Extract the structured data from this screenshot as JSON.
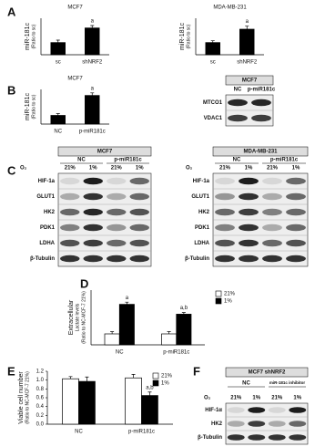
{
  "panel_labels": [
    "A",
    "B",
    "C",
    "D",
    "E",
    "F"
  ],
  "chart_data": [
    {
      "type": "bar",
      "title": "MCF7",
      "y_label": [
        "miR-181c",
        "(Ratio to sc)"
      ],
      "categories": [
        "sc",
        "shNRF2"
      ],
      "values": [
        1,
        2.2
      ],
      "errors": [
        0.2,
        0.2
      ],
      "annotations": [
        null,
        "a"
      ],
      "color": "#000000",
      "ylim": [
        0,
        3
      ]
    },
    {
      "type": "bar",
      "title": "MDA-MB-231",
      "y_label": [
        "miR-181c",
        "(Ratio to sc)"
      ],
      "categories": [
        "sc",
        "shNRF2"
      ],
      "values": [
        1,
        2.1
      ],
      "errors": [
        0.15,
        0.25
      ],
      "annotations": [
        null,
        "a"
      ],
      "color": "#000000",
      "ylim": [
        0,
        3
      ]
    },
    {
      "type": "bar",
      "title": "MCF7",
      "y_label": [
        "miR-181c",
        "(Ratio to sc)"
      ],
      "categories": [
        "NC",
        "p-miR181c"
      ],
      "values": [
        1,
        3.3
      ],
      "errors": [
        0.2,
        0.3
      ],
      "annotations": [
        null,
        "a"
      ],
      "color": "#000000",
      "ylim": [
        0,
        4
      ]
    },
    {
      "type": "bar",
      "y_label": [
        "Extracellular",
        "Lactate levels",
        "(Ratio to NC-MCF-7 21%)"
      ],
      "categories": [
        "NC",
        "p-miR181c"
      ],
      "ylim": [
        0,
        5
      ],
      "legend": "upper right",
      "series": [
        {
          "name": "21%",
          "color": "#ffffff",
          "values": [
            1,
            1
          ],
          "errors": [
            0.2,
            0.2
          ],
          "annotations": [
            null,
            null
          ]
        },
        {
          "name": "1%",
          "color": "#000000",
          "values": [
            3.7,
            2.8
          ],
          "errors": [
            0.2,
            0.15
          ],
          "annotations": [
            "a",
            "a,b"
          ]
        }
      ]
    },
    {
      "type": "bar",
      "y_label": [
        "Viable cell number",
        "(Ratio to NC-MCF-7 21%)"
      ],
      "categories": [
        "NC",
        "p-miR181c"
      ],
      "ylim": [
        0,
        1.2
      ],
      "legend": "upper right",
      "yticks": [
        {
          "value": 0,
          "label": "0.0"
        },
        {
          "value": 0.2,
          "label": "0.2"
        },
        {
          "value": 0.4,
          "label": "0.4"
        },
        {
          "value": 0.6,
          "label": "0.6"
        },
        {
          "value": 0.8,
          "label": "0.8"
        },
        {
          "value": 1,
          "label": "1.0"
        },
        {
          "value": 1.2,
          "label": "1.2"
        }
      ],
      "series": [
        {
          "name": "21%",
          "color": "#ffffff",
          "values": [
            1.03,
            1.05
          ],
          "errors": [
            0.05,
            0.08
          ],
          "annotations": [
            null,
            null
          ]
        },
        {
          "name": "1%",
          "color": "#000000",
          "values": [
            0.97,
            0.65
          ],
          "errors": [
            0.1,
            0.08
          ],
          "annotations": [
            null,
            "a,b"
          ]
        }
      ]
    }
  ],
  "blots": [
    {
      "title": "MCF7",
      "lanes": [
        "NC",
        "p-miR181c"
      ],
      "rows": [
        "MTCO1",
        "VDAC1"
      ]
    },
    {
      "title": "MCF7",
      "condition_label": "O₂",
      "groups": [
        "NC",
        "p-miR181c"
      ],
      "lanes": [
        "21%",
        "1%",
        "21%",
        "1%"
      ],
      "rows": [
        "HIF-1a",
        "GLUT1",
        "HK2",
        "PDK1",
        "LDHA",
        "β-Tubulin"
      ]
    },
    {
      "title": "MDA-MB-231",
      "condition_label": "O₂",
      "groups": [
        "NC",
        "p-miR181c"
      ],
      "lanes": [
        "21%",
        "1%",
        "21%",
        "1%"
      ],
      "rows": [
        "HIF-1a",
        "GLUT1",
        "HK2",
        "PDK1",
        "LDHA",
        "β-Tubulin"
      ]
    },
    {
      "title": "MCF7 shNRF2",
      "condition_label": "O₂",
      "groups": [
        "NC",
        "miR-181c inhibitor"
      ],
      "lanes": [
        "21%",
        "1%",
        "21%",
        "1%"
      ],
      "rows": [
        "HIF-1α",
        "HK2",
        "β-Tubulin"
      ]
    }
  ]
}
